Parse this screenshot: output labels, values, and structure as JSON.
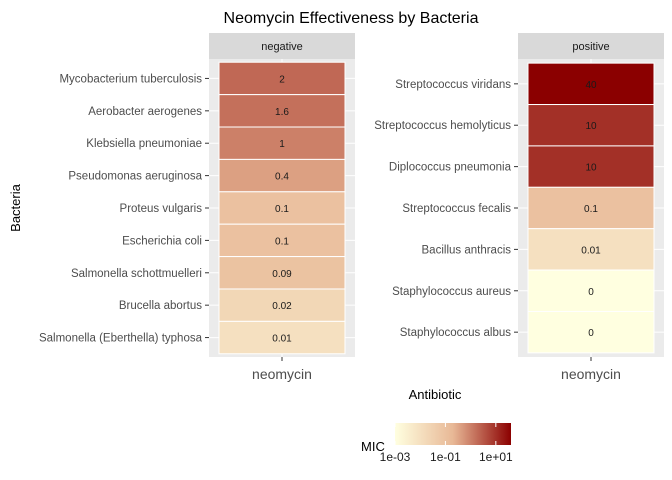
{
  "chart_data": {
    "type": "heatmap",
    "title": "Neomycin Effectiveness by Bacteria",
    "xlabel": "Antibiotic",
    "ylabel": "Bacteria",
    "legend": {
      "title": "MIC",
      "position": "bottom",
      "scale": "log10",
      "tick_labels": [
        "1e-03",
        "1e-01",
        "1e+01"
      ],
      "tick_values": [
        0.001,
        0.1,
        10
      ],
      "range": [
        0.001,
        40
      ],
      "low_color": "#FFFFE0",
      "mid_color": "#E8B896",
      "high_color": "#8B0000"
    },
    "panels": [
      {
        "facet": "negative",
        "x_categories": [
          "neomycin"
        ],
        "rows": [
          {
            "bacteria": "Mycobacterium tuberculosis",
            "value": 2,
            "label": "2"
          },
          {
            "bacteria": "Aerobacter aerogenes",
            "value": 1.6,
            "label": "1.6"
          },
          {
            "bacteria": "Klebsiella pneumoniae",
            "value": 1,
            "label": "1"
          },
          {
            "bacteria": "Pseudomonas aeruginosa",
            "value": 0.4,
            "label": "0.4"
          },
          {
            "bacteria": "Proteus vulgaris",
            "value": 0.1,
            "label": "0.1"
          },
          {
            "bacteria": "Escherichia coli",
            "value": 0.1,
            "label": "0.1"
          },
          {
            "bacteria": "Salmonella schottmuelleri",
            "value": 0.09,
            "label": "0.09"
          },
          {
            "bacteria": "Brucella abortus",
            "value": 0.02,
            "label": "0.02"
          },
          {
            "bacteria": "Salmonella (Eberthella) typhosa",
            "value": 0.01,
            "label": "0.01"
          }
        ]
      },
      {
        "facet": "positive",
        "x_categories": [
          "neomycin"
        ],
        "rows": [
          {
            "bacteria": "Streptococcus viridans",
            "value": 40,
            "label": "40"
          },
          {
            "bacteria": "Streptococcus hemolyticus",
            "value": 10,
            "label": "10"
          },
          {
            "bacteria": "Diplococcus pneumonia",
            "value": 10,
            "label": "10"
          },
          {
            "bacteria": "Streptococcus fecalis",
            "value": 0.1,
            "label": "0.1"
          },
          {
            "bacteria": "Bacillus anthracis",
            "value": 0.01,
            "label": "0.01"
          },
          {
            "bacteria": "Staphylococcus aureus",
            "value": 0.001,
            "label": "0"
          },
          {
            "bacteria": "Staphylococcus albus",
            "value": 0.001,
            "label": "0"
          }
        ]
      }
    ]
  }
}
